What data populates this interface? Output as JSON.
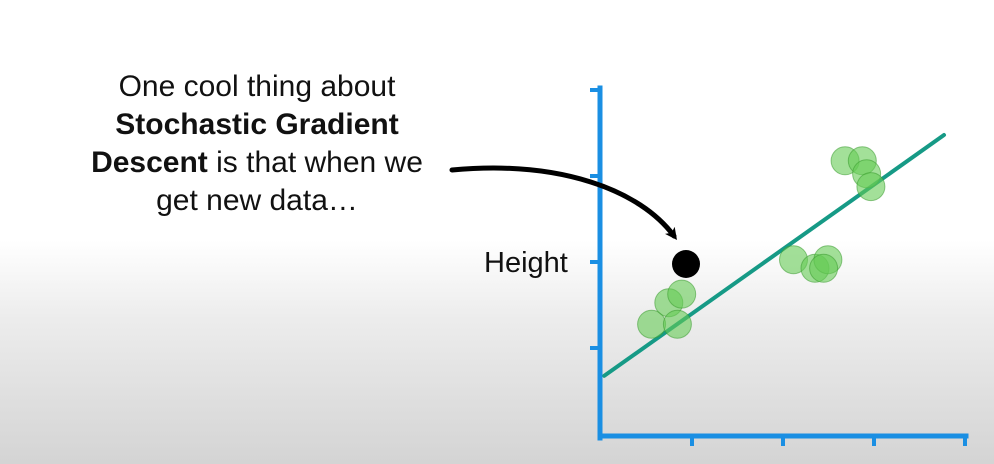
{
  "caption": {
    "line1": "One cool thing about",
    "line2_bold": "Stochastic Gradient",
    "line3_bold": "Descent",
    "line3_rest": " is that when we",
    "line4": "get new data…"
  },
  "axis": {
    "ylabel": "Height",
    "color": "#1a8fe3"
  },
  "colors": {
    "fit_line": "#169a86",
    "points_fill": "#66cc55",
    "points_stroke": "#3a9a30",
    "new_point": "#000000",
    "arrow": "#000000"
  },
  "chart_data": {
    "type": "scatter",
    "xlabel": "",
    "ylabel": "Height",
    "fit_line": {
      "from": [
        0.05,
        0.7
      ],
      "to": [
        4.0,
        3.5
      ]
    },
    "points": [
      {
        "x": 0.6,
        "y": 1.3
      },
      {
        "x": 0.8,
        "y": 1.55
      },
      {
        "x": 0.95,
        "y": 1.65
      },
      {
        "x": 0.9,
        "y": 1.3
      },
      {
        "x": 2.25,
        "y": 2.05
      },
      {
        "x": 2.5,
        "y": 1.95
      },
      {
        "x": 2.65,
        "y": 2.05
      },
      {
        "x": 2.6,
        "y": 1.95
      },
      {
        "x": 2.85,
        "y": 3.2
      },
      {
        "x": 3.05,
        "y": 3.2
      },
      {
        "x": 3.1,
        "y": 3.05
      },
      {
        "x": 3.15,
        "y": 2.9
      }
    ],
    "new_point": {
      "x": 1.0,
      "y": 2.0
    }
  }
}
